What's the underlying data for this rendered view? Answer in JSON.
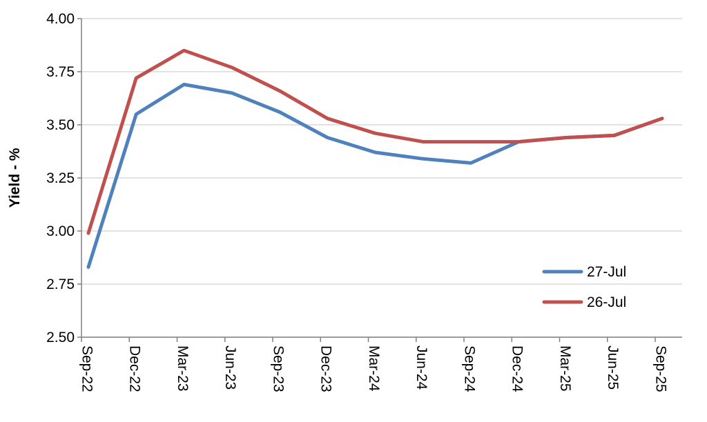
{
  "chart_data": {
    "type": "line",
    "title": "",
    "xlabel": "",
    "ylabel": "Yield - %",
    "ylim": [
      2.5,
      4.0
    ],
    "yticks": [
      "2.50",
      "2.75",
      "3.00",
      "3.25",
      "3.50",
      "3.75",
      "4.00"
    ],
    "categories": [
      "Sep-22",
      "Dec-22",
      "Mar-23",
      "Jun-23",
      "Sep-23",
      "Dec-23",
      "Mar-24",
      "Jun-24",
      "Sep-24",
      "Dec-24",
      "Mar-25",
      "Jun-25",
      "Sep-25"
    ],
    "grid": "horizontal",
    "legend_position": "bottom-right",
    "series": [
      {
        "name": "27-Jul",
        "color": "#4F81BD",
        "values": [
          2.83,
          3.55,
          3.69,
          3.65,
          3.56,
          3.44,
          3.37,
          3.34,
          3.32,
          3.42,
          3.44,
          3.45,
          3.53
        ]
      },
      {
        "name": "26-Jul",
        "color": "#C0504D",
        "values": [
          2.99,
          3.72,
          3.85,
          3.77,
          3.66,
          3.53,
          3.46,
          3.42,
          3.42,
          3.42,
          3.44,
          3.45,
          3.53
        ]
      }
    ]
  }
}
